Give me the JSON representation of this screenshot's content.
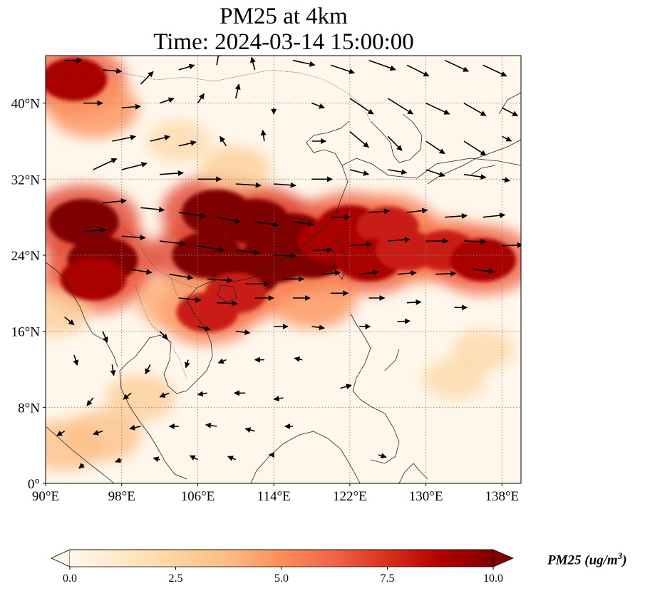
{
  "title": {
    "line1": "PM25 at 4km",
    "line2": "Time: 2024-03-14 15:00:00"
  },
  "map": {
    "lon_range": [
      90,
      140
    ],
    "lat_range": [
      0,
      45
    ],
    "lon_ticks": [
      {
        "value": 90,
        "label": "90°E"
      },
      {
        "value": 98,
        "label": "98°E"
      },
      {
        "value": 106,
        "label": "106°E"
      },
      {
        "value": 114,
        "label": "114°E"
      },
      {
        "value": 122,
        "label": "122°E"
      },
      {
        "value": 130,
        "label": "130°E"
      },
      {
        "value": 138,
        "label": "138°E"
      }
    ],
    "lat_ticks": [
      {
        "value": 0,
        "label": "0°"
      },
      {
        "value": 8,
        "label": "8°N"
      },
      {
        "value": 16,
        "label": "16°N"
      },
      {
        "value": 24,
        "label": "24°N"
      },
      {
        "value": 32,
        "label": "32°N"
      },
      {
        "value": 40,
        "label": "40°N"
      }
    ],
    "gridlines": true,
    "colormap": "OrRd",
    "colors": {
      "low": "#fff7ec",
      "mid": "#fdbb84",
      "high": "#d7301f",
      "max": "#7f0000",
      "coast": "#222222",
      "grid": "#8a8270"
    },
    "pollution_field": [
      {
        "lon": 108,
        "lat": 28.5,
        "value": 10
      },
      {
        "lon": 112,
        "lat": 27.5,
        "value": 10
      },
      {
        "lon": 116,
        "lat": 26,
        "value": 10
      },
      {
        "lon": 107,
        "lat": 24,
        "value": 10
      },
      {
        "lon": 111,
        "lat": 22,
        "value": 10
      },
      {
        "lon": 114,
        "lat": 23.5,
        "value": 10
      },
      {
        "lon": 118,
        "lat": 24,
        "value": 10
      },
      {
        "lon": 120,
        "lat": 25.5,
        "value": 9
      },
      {
        "lon": 122,
        "lat": 27,
        "value": 9
      },
      {
        "lon": 126,
        "lat": 27,
        "value": 8
      },
      {
        "lon": 124,
        "lat": 23.5,
        "value": 9
      },
      {
        "lon": 128,
        "lat": 24.5,
        "value": 8
      },
      {
        "lon": 132,
        "lat": 24.5,
        "value": 8
      },
      {
        "lon": 136,
        "lat": 23.5,
        "value": 9
      },
      {
        "lon": 94,
        "lat": 27.5,
        "value": 10
      },
      {
        "lon": 96,
        "lat": 23.5,
        "value": 10
      },
      {
        "lon": 95,
        "lat": 21.5,
        "value": 9
      },
      {
        "lon": 93,
        "lat": 42.5,
        "value": 9
      },
      {
        "lon": 95,
        "lat": 39.5,
        "value": 7
      },
      {
        "lon": 107,
        "lat": 18,
        "value": 8
      },
      {
        "lon": 110,
        "lat": 20,
        "value": 8
      },
      {
        "lon": 118,
        "lat": 19.5,
        "value": 7
      },
      {
        "lon": 104,
        "lat": 19,
        "value": 6
      },
      {
        "lon": 96,
        "lat": 5,
        "value": 5
      },
      {
        "lon": 92,
        "lat": 4,
        "value": 5
      },
      {
        "lon": 100,
        "lat": 9,
        "value": 4
      },
      {
        "lon": 133,
        "lat": 11,
        "value": 3
      },
      {
        "lon": 136,
        "lat": 14,
        "value": 3
      },
      {
        "lon": 91,
        "lat": 18,
        "value": 4
      },
      {
        "lon": 104,
        "lat": 36,
        "value": 3
      },
      {
        "lon": 110,
        "lat": 33,
        "value": 4
      }
    ],
    "wind_vectors": [
      {
        "lon": 95,
        "lat": 33,
        "u": 3,
        "v": 1.4
      },
      {
        "lon": 97,
        "lat": 36,
        "u": 3,
        "v": 0.6
      },
      {
        "lon": 101,
        "lat": 36,
        "u": 2.5,
        "v": 0.6
      },
      {
        "lon": 104,
        "lat": 35.5,
        "u": 2.2,
        "v": 0.5
      },
      {
        "lon": 98,
        "lat": 33,
        "u": 3.2,
        "v": 0.8
      },
      {
        "lon": 102,
        "lat": 32.5,
        "u": 3,
        "v": 0.2
      },
      {
        "lon": 106,
        "lat": 32,
        "u": 3,
        "v": 0
      },
      {
        "lon": 110,
        "lat": 31.5,
        "u": 3.2,
        "v": -0.2
      },
      {
        "lon": 114,
        "lat": 31.5,
        "u": 2.8,
        "v": -0.2
      },
      {
        "lon": 118,
        "lat": 32,
        "u": 2.6,
        "v": 0
      },
      {
        "lon": 96,
        "lat": 29.5,
        "u": 3,
        "v": 0.3
      },
      {
        "lon": 100,
        "lat": 29,
        "u": 3,
        "v": -0.3
      },
      {
        "lon": 104,
        "lat": 28.5,
        "u": 3.4,
        "v": -0.5
      },
      {
        "lon": 108,
        "lat": 28,
        "u": 3,
        "v": -0.6
      },
      {
        "lon": 112,
        "lat": 27.5,
        "u": 3,
        "v": -0.4
      },
      {
        "lon": 116,
        "lat": 27.5,
        "u": 2.6,
        "v": -0.3
      },
      {
        "lon": 120,
        "lat": 28,
        "u": 2.4,
        "v": 0
      },
      {
        "lon": 124,
        "lat": 28.5,
        "u": 2.6,
        "v": 0.2
      },
      {
        "lon": 128,
        "lat": 28.5,
        "u": 2.6,
        "v": 0.3
      },
      {
        "lon": 132,
        "lat": 28,
        "u": 2.8,
        "v": 0.2
      },
      {
        "lon": 136,
        "lat": 28,
        "u": 2.8,
        "v": 0.3
      },
      {
        "lon": 94,
        "lat": 26.5,
        "u": 2.8,
        "v": 0.2
      },
      {
        "lon": 98,
        "lat": 26,
        "u": 3,
        "v": -0.2
      },
      {
        "lon": 102,
        "lat": 25.5,
        "u": 3.2,
        "v": -0.4
      },
      {
        "lon": 106,
        "lat": 25,
        "u": 3.4,
        "v": -0.6
      },
      {
        "lon": 110,
        "lat": 24.5,
        "u": 3,
        "v": -0.3
      },
      {
        "lon": 114,
        "lat": 24,
        "u": 2.8,
        "v": -0.1
      },
      {
        "lon": 118,
        "lat": 24.5,
        "u": 2.6,
        "v": 0.1
      },
      {
        "lon": 122,
        "lat": 25,
        "u": 2.8,
        "v": 0.2
      },
      {
        "lon": 126,
        "lat": 25.5,
        "u": 2.8,
        "v": 0.2
      },
      {
        "lon": 130,
        "lat": 25.5,
        "u": 2.8,
        "v": 0
      },
      {
        "lon": 134,
        "lat": 25.5,
        "u": 2.8,
        "v": -0.1
      },
      {
        "lon": 138,
        "lat": 25,
        "u": 2.6,
        "v": 0.1
      },
      {
        "lon": 99,
        "lat": 22.5,
        "u": 2.6,
        "v": -0.4
      },
      {
        "lon": 103,
        "lat": 22,
        "u": 3,
        "v": -0.5
      },
      {
        "lon": 107,
        "lat": 21.5,
        "u": 3.2,
        "v": -0.2
      },
      {
        "lon": 111,
        "lat": 21,
        "u": 3,
        "v": 0
      },
      {
        "lon": 115,
        "lat": 21.5,
        "u": 2.6,
        "v": 0
      },
      {
        "lon": 119,
        "lat": 22,
        "u": 2.4,
        "v": 0.2
      },
      {
        "lon": 123,
        "lat": 22,
        "u": 2.4,
        "v": 0.3
      },
      {
        "lon": 127,
        "lat": 22,
        "u": 2.4,
        "v": 0.2
      },
      {
        "lon": 131,
        "lat": 22,
        "u": 2.6,
        "v": 0.1
      },
      {
        "lon": 135,
        "lat": 22.5,
        "u": 2.6,
        "v": -0.3
      },
      {
        "lon": 104,
        "lat": 19.5,
        "u": 2.8,
        "v": -0.3
      },
      {
        "lon": 108,
        "lat": 19,
        "u": 2.6,
        "v": -0.1
      },
      {
        "lon": 112,
        "lat": 19.5,
        "u": 2.4,
        "v": 0
      },
      {
        "lon": 116,
        "lat": 19.5,
        "u": 2.2,
        "v": 0
      },
      {
        "lon": 120,
        "lat": 20,
        "u": 2.2,
        "v": 0
      },
      {
        "lon": 124,
        "lat": 19.5,
        "u": 2,
        "v": 0
      },
      {
        "lon": 128,
        "lat": 19,
        "u": 1.8,
        "v": 0.1
      },
      {
        "lon": 133,
        "lat": 18.5,
        "u": 1.6,
        "v": 0
      },
      {
        "lon": 92,
        "lat": 17.5,
        "u": 1.2,
        "v": -1
      },
      {
        "lon": 96,
        "lat": 16,
        "u": 0.6,
        "v": -1.4
      },
      {
        "lon": 102,
        "lat": 16,
        "u": 1,
        "v": -1
      },
      {
        "lon": 106,
        "lat": 16.5,
        "u": 1.6,
        "v": -0.4
      },
      {
        "lon": 110,
        "lat": 16,
        "u": 1.8,
        "v": -0.2
      },
      {
        "lon": 114,
        "lat": 16.5,
        "u": 1.8,
        "v": 0
      },
      {
        "lon": 118,
        "lat": 16.5,
        "u": 1.6,
        "v": -0.2
      },
      {
        "lon": 123,
        "lat": 16.5,
        "u": 1.4,
        "v": 0
      },
      {
        "lon": 127,
        "lat": 17,
        "u": 1.6,
        "v": 0.1
      },
      {
        "lon": 93,
        "lat": 13.5,
        "u": 0.4,
        "v": -1.3
      },
      {
        "lon": 97,
        "lat": 12.5,
        "u": 0.2,
        "v": -1.4
      },
      {
        "lon": 101,
        "lat": 12.5,
        "u": -0.6,
        "v": -1.2
      },
      {
        "lon": 105,
        "lat": 13,
        "u": -0.3,
        "v": -1
      },
      {
        "lon": 109,
        "lat": 13,
        "u": -1,
        "v": -0.4
      },
      {
        "lon": 113,
        "lat": 13,
        "u": -1.2,
        "v": 0
      },
      {
        "lon": 117,
        "lat": 13,
        "u": -1,
        "v": 0.2
      },
      {
        "lon": 121,
        "lat": 10,
        "u": 1.4,
        "v": 0.4
      },
      {
        "lon": 95,
        "lat": 9,
        "u": -0.8,
        "v": -1
      },
      {
        "lon": 99,
        "lat": 9.5,
        "u": -1,
        "v": -0.8
      },
      {
        "lon": 103,
        "lat": 9.5,
        "u": -1.2,
        "v": -0.5
      },
      {
        "lon": 107,
        "lat": 9.5,
        "u": -1.2,
        "v": -0.2
      },
      {
        "lon": 111,
        "lat": 9.5,
        "u": -1.4,
        "v": 0
      },
      {
        "lon": 115,
        "lat": 9,
        "u": -1.2,
        "v": -0.2
      },
      {
        "lon": 92,
        "lat": 5.5,
        "u": -1,
        "v": -0.6
      },
      {
        "lon": 96,
        "lat": 5.5,
        "u": -1.2,
        "v": -0.4
      },
      {
        "lon": 100,
        "lat": 6,
        "u": -1.4,
        "v": -0.3
      },
      {
        "lon": 104,
        "lat": 6,
        "u": -1.2,
        "v": 0
      },
      {
        "lon": 108,
        "lat": 6,
        "u": -1.4,
        "v": 0.2
      },
      {
        "lon": 112,
        "lat": 5.5,
        "u": -1.2,
        "v": 0.3
      },
      {
        "lon": 116,
        "lat": 6,
        "u": -1,
        "v": 0
      },
      {
        "lon": 94,
        "lat": 2,
        "u": -0.6,
        "v": -0.5
      },
      {
        "lon": 98,
        "lat": 2.5,
        "u": -0.8,
        "v": -0.3
      },
      {
        "lon": 102,
        "lat": 2.5,
        "u": -0.8,
        "v": 0.2
      },
      {
        "lon": 106,
        "lat": 2.5,
        "u": -1,
        "v": 0.5
      },
      {
        "lon": 110,
        "lat": 2.5,
        "u": -1,
        "v": 0.4
      },
      {
        "lon": 114,
        "lat": 3,
        "u": -0.6,
        "v": 0
      },
      {
        "lon": 125,
        "lat": 3,
        "u": 1,
        "v": -0.3
      },
      {
        "lon": 92,
        "lat": 44.5,
        "u": 2.2,
        "v": 0
      },
      {
        "lon": 96,
        "lat": 43.5,
        "u": 2.4,
        "v": -0.2
      },
      {
        "lon": 100,
        "lat": 42,
        "u": 1.6,
        "v": 1.6
      },
      {
        "lon": 104,
        "lat": 43.5,
        "u": 2,
        "v": 0.6
      },
      {
        "lon": 108,
        "lat": 44,
        "u": 0.3,
        "v": 1.8
      },
      {
        "lon": 112,
        "lat": 43.5,
        "u": -0.4,
        "v": 1.6
      },
      {
        "lon": 116,
        "lat": 44.5,
        "u": 2.8,
        "v": -0.6
      },
      {
        "lon": 120,
        "lat": 44,
        "u": 3,
        "v": -1
      },
      {
        "lon": 124,
        "lat": 44.5,
        "u": 3.4,
        "v": -1.2
      },
      {
        "lon": 128,
        "lat": 44,
        "u": 2.8,
        "v": -1.4
      },
      {
        "lon": 132,
        "lat": 44.5,
        "u": 3,
        "v": -1.4
      },
      {
        "lon": 136,
        "lat": 44,
        "u": 3,
        "v": -1.4
      },
      {
        "lon": 94,
        "lat": 40,
        "u": 2.4,
        "v": 0
      },
      {
        "lon": 98,
        "lat": 39.5,
        "u": 2.4,
        "v": 0.2
      },
      {
        "lon": 102,
        "lat": 40,
        "u": 1.8,
        "v": 0.6
      },
      {
        "lon": 106,
        "lat": 40,
        "u": 0.8,
        "v": 1.2
      },
      {
        "lon": 110,
        "lat": 40.5,
        "u": 0.4,
        "v": 1.8
      },
      {
        "lon": 114,
        "lat": 39.5,
        "u": 0,
        "v": -0.8
      },
      {
        "lon": 118,
        "lat": 40,
        "u": 1.6,
        "v": -0.6
      },
      {
        "lon": 122,
        "lat": 40.5,
        "u": 3,
        "v": -2
      },
      {
        "lon": 126,
        "lat": 40.5,
        "u": 3.2,
        "v": -2
      },
      {
        "lon": 130,
        "lat": 40,
        "u": 3,
        "v": -1.4
      },
      {
        "lon": 134,
        "lat": 40,
        "u": 2.8,
        "v": -1.6
      },
      {
        "lon": 138,
        "lat": 39.5,
        "u": 2,
        "v": -1
      },
      {
        "lon": 118,
        "lat": 36,
        "u": 1.8,
        "v": 0
      },
      {
        "lon": 122,
        "lat": 37,
        "u": 2.4,
        "v": -2
      },
      {
        "lon": 126,
        "lat": 36.5,
        "u": 1.8,
        "v": -1.8
      },
      {
        "lon": 130,
        "lat": 36,
        "u": 2.4,
        "v": -1.6
      },
      {
        "lon": 134,
        "lat": 36,
        "u": 2.8,
        "v": -1.8
      },
      {
        "lon": 138,
        "lat": 36.5,
        "u": 1.2,
        "v": -0.6
      },
      {
        "lon": 122,
        "lat": 33,
        "u": 2.4,
        "v": -0.6
      },
      {
        "lon": 126,
        "lat": 33,
        "u": 2.4,
        "v": -0.4
      },
      {
        "lon": 130,
        "lat": 33,
        "u": 2.4,
        "v": -0.8
      },
      {
        "lon": 134,
        "lat": 32.5,
        "u": 2.8,
        "v": -0.4
      },
      {
        "lon": 138,
        "lat": 32,
        "u": 1,
        "v": -0.2
      },
      {
        "lon": 109,
        "lat": 35.5,
        "u": -0.8,
        "v": 1.2
      },
      {
        "lon": 113,
        "lat": 36,
        "u": -0.2,
        "v": 1.4
      }
    ]
  },
  "colorbar": {
    "label_main": "PM25 (ug/m",
    "label_sup": "3",
    "label_end": ")",
    "min": 0,
    "max": 10,
    "extend": "both",
    "ticks": [
      {
        "value": 0,
        "label": "0.0"
      },
      {
        "value": 2.5,
        "label": "2.5"
      },
      {
        "value": 5,
        "label": "5.0"
      },
      {
        "value": 7.5,
        "label": "7.5"
      },
      {
        "value": 10,
        "label": "10.0"
      }
    ]
  }
}
